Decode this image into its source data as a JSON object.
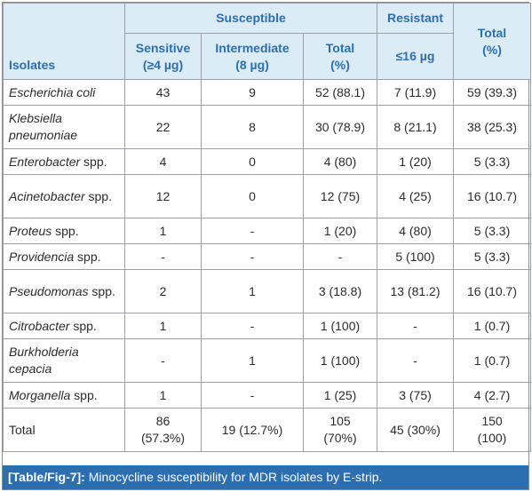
{
  "table": {
    "group_headers": {
      "susceptible": "Susceptible",
      "resistant": "Resistant"
    },
    "columns": {
      "isolates": "Isolates",
      "sensitive": [
        "Sensitive",
        "(≥4 µg)"
      ],
      "intermediate": [
        "Intermediate",
        "(8 µg)"
      ],
      "total_susceptible": [
        "Total",
        "(%)"
      ],
      "resistant": "≤16 µg",
      "total": [
        "Total",
        "(%)"
      ]
    },
    "rows": [
      {
        "name": "Escherichia coli",
        "suffix": "",
        "sensitive": "43",
        "intermediate": "9",
        "total_susceptible": "52 (88.1)",
        "resistant": "7 (11.9)",
        "total": "59 (39.3)"
      },
      {
        "name": "Klebsiella pneumoniae",
        "suffix": "",
        "sensitive": "22",
        "intermediate": "8",
        "total_susceptible": "30 (78.9)",
        "resistant": "8 (21.1)",
        "total": "38 (25.3)"
      },
      {
        "name": "Enterobacter",
        "suffix": " spp.",
        "sensitive": "4",
        "intermediate": "0",
        "total_susceptible": "4 (80)",
        "resistant": "1 (20)",
        "total": "5 (3.3)"
      },
      {
        "name": "Acinetobacter",
        "suffix": " spp.",
        "sensitive": "12",
        "intermediate": "0",
        "total_susceptible": "12 (75)",
        "resistant": "4 (25)",
        "total": "16 (10.7)"
      },
      {
        "name": "Proteus",
        "suffix": " spp.",
        "sensitive": "1",
        "intermediate": "-",
        "total_susceptible": "1 (20)",
        "resistant": "4 (80)",
        "total": "5 (3.3)"
      },
      {
        "name": "Providencia",
        "suffix": " spp.",
        "sensitive": "-",
        "intermediate": "-",
        "total_susceptible": "-",
        "resistant": "5 (100)",
        "total": "5 (3.3)"
      },
      {
        "name": "Pseudomonas",
        "suffix": " spp.",
        "sensitive": "2",
        "intermediate": "1",
        "total_susceptible": "3 (18.8)",
        "resistant": "13 (81.2)",
        "total": "16 (10.7)"
      },
      {
        "name": "Citrobacter",
        "suffix": " spp.",
        "sensitive": "1",
        "intermediate": "-",
        "total_susceptible": "1 (100)",
        "resistant": "-",
        "total": "1 (0.7)"
      },
      {
        "name": "Burkholderia cepacia",
        "suffix": "",
        "sensitive": "-",
        "intermediate": "1",
        "total_susceptible": "1 (100)",
        "resistant": "-",
        "total": "1 (0.7)"
      },
      {
        "name": "Morganella",
        "suffix": " spp.",
        "sensitive": "1",
        "intermediate": "-",
        "total_susceptible": "1 (25)",
        "resistant": "3 (75)",
        "total": "4 (2.7)"
      }
    ],
    "total_row": {
      "name": "Total",
      "sensitive": [
        "86",
        "(57.3%)"
      ],
      "intermediate": "19 (12.7%)",
      "total_susceptible": [
        "105",
        "(70%)"
      ],
      "resistant": "45 (30%)",
      "total": [
        "150",
        "(100)"
      ]
    }
  },
  "caption": {
    "label": "[Table/Fig-7]:",
    "text": " Minocycline susceptibility for MDR isolates by E-strip."
  },
  "colors": {
    "header_bg": "#dcecf6",
    "header_text": "#2b6fb0",
    "caption_bg": "#2b6fb0"
  }
}
